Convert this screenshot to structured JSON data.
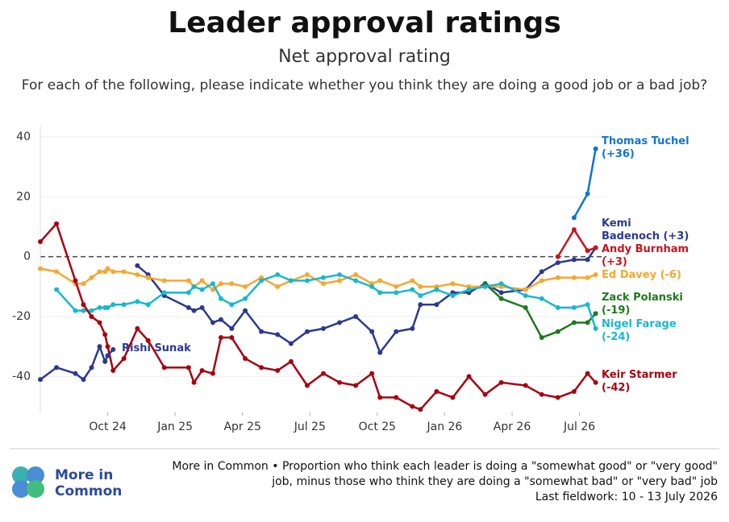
{
  "chart_data": {
    "type": "line",
    "title": "Leader approval ratings",
    "subtitle": "Net approval rating",
    "question": "For each of the following, please indicate whether you think they are doing a good job or a bad job?",
    "xlim": [
      2024.5,
      2026.6
    ],
    "xticks": [
      {
        "value": 2024.75,
        "label": "Oct 24"
      },
      {
        "value": 2025.0,
        "label": "Jan 25"
      },
      {
        "value": 2025.25,
        "label": "Apr 25"
      },
      {
        "value": 2025.5,
        "label": "Jul 25"
      },
      {
        "value": 2025.75,
        "label": "Oct 25"
      },
      {
        "value": 2026.0,
        "label": "Jan 26"
      },
      {
        "value": 2026.25,
        "label": "Apr 26"
      },
      {
        "value": 2026.5,
        "label": "Jul 26"
      }
    ],
    "ylim": [
      -52,
      44
    ],
    "yticks": [
      -40,
      -20,
      0,
      20,
      40
    ],
    "grid": true,
    "x": [
      2024.5,
      2024.56,
      2024.63,
      2024.66,
      2024.69,
      2024.72,
      2024.74,
      2024.75,
      2024.77,
      2024.81,
      2024.86,
      2024.9,
      2024.96,
      2025.05,
      2025.07,
      2025.1,
      2025.14,
      2025.17,
      2025.21,
      2025.26,
      2025.32,
      2025.38,
      2025.43,
      2025.49,
      2025.55,
      2025.61,
      2025.67,
      2025.73,
      2025.76,
      2025.82,
      2025.88,
      2025.91,
      2025.97,
      2026.03,
      2026.09,
      2026.15,
      2026.21,
      2026.3,
      2026.36,
      2026.42,
      2026.48,
      2026.53,
      2026.56
    ],
    "series": [
      {
        "name": "Thomas Tuchel (+36)",
        "color": "#1174d2",
        "values": [
          null,
          null,
          null,
          null,
          null,
          null,
          null,
          null,
          null,
          null,
          null,
          null,
          null,
          null,
          null,
          null,
          null,
          null,
          null,
          null,
          null,
          null,
          null,
          null,
          null,
          null,
          null,
          null,
          null,
          null,
          null,
          null,
          null,
          null,
          null,
          null,
          null,
          null,
          null,
          null,
          13,
          21,
          36
        ]
      },
      {
        "name": "Kemi Badenoch (+3)",
        "color": "#2b3990",
        "values": [
          null,
          null,
          null,
          null,
          null,
          null,
          null,
          null,
          null,
          null,
          -3,
          -6,
          -13,
          -17,
          -18,
          -17,
          -22,
          -21,
          -24,
          -18,
          -25,
          -26,
          -29,
          -25,
          -24,
          -22,
          -20,
          -25,
          -32,
          -25,
          -24,
          -16,
          -16,
          -12,
          -12,
          -9,
          -12,
          -11,
          -5,
          -2,
          -1,
          -1,
          3
        ]
      },
      {
        "name": "Andy Burnham (+3)",
        "color": "#c8141e",
        "values": [
          null,
          null,
          null,
          null,
          null,
          null,
          null,
          null,
          null,
          null,
          null,
          null,
          null,
          null,
          null,
          null,
          null,
          null,
          null,
          null,
          null,
          null,
          null,
          null,
          null,
          null,
          null,
          null,
          null,
          null,
          null,
          null,
          null,
          null,
          null,
          null,
          null,
          null,
          null,
          0,
          9,
          2,
          3
        ]
      },
      {
        "name": "Ed Davey (-6)",
        "color": "#f7a731",
        "values": [
          -4,
          -5,
          -9,
          -9,
          -7,
          -5,
          -5,
          -4,
          -5,
          -5,
          -6,
          -7,
          -8,
          -8,
          -10,
          -8,
          -11,
          -9,
          -9,
          -10,
          -7,
          -10,
          -8,
          -6,
          -9,
          -8,
          -6,
          -9,
          -8,
          -10,
          -8,
          -10,
          -10,
          -9,
          -10,
          -10,
          -10,
          -11,
          -8,
          -7,
          -7,
          -7,
          -6
        ]
      },
      {
        "name": "Zack Polanski (-19)",
        "color": "#1d7a1d",
        "values": [
          null,
          null,
          null,
          null,
          null,
          null,
          null,
          null,
          null,
          null,
          null,
          null,
          null,
          null,
          null,
          null,
          null,
          null,
          null,
          null,
          null,
          null,
          null,
          null,
          null,
          null,
          null,
          null,
          null,
          null,
          null,
          null,
          null,
          null,
          null,
          -9,
          -14,
          -17,
          -27,
          -25,
          -22,
          -22,
          -19
        ]
      },
      {
        "name": "Nigel Farage (-24)",
        "color": "#19b7d0",
        "values": [
          null,
          -11,
          -18,
          -18,
          -18,
          -17,
          -17,
          -17,
          -16,
          -16,
          -15,
          -16,
          -12,
          -12,
          -10,
          -11,
          -9,
          -14,
          -16,
          -14,
          -8,
          -6,
          -8,
          -8,
          -7,
          -6,
          -8,
          -10,
          -12,
          -12,
          -11,
          -13,
          -11,
          -13,
          -11,
          -10,
          -9,
          -13,
          -14,
          -17,
          -17,
          -16,
          -24
        ]
      },
      {
        "name": "Keir Starmer (-42)",
        "color": "#a8000f",
        "values": [
          5,
          11,
          -8,
          -16,
          -20,
          -22,
          -26,
          -30,
          -38,
          -34,
          -24,
          -28,
          -37,
          -37,
          -42,
          -38,
          -39,
          -27,
          -27,
          -34,
          -37,
          -38,
          -35,
          -43,
          -39,
          -42,
          -43,
          -39,
          -47,
          -47,
          -50,
          -51,
          -45,
          -47,
          -40,
          -46,
          -42,
          -43,
          -46,
          -47,
          -45,
          -39,
          -42
        ]
      },
      {
        "name": "Rishi Sunak",
        "color": "#2b3990",
        "values": [
          -41,
          -37,
          -39,
          -41,
          -37,
          -30,
          -35,
          -33,
          -31,
          null,
          null,
          null,
          null,
          null,
          null,
          null,
          null,
          null,
          null,
          null,
          null,
          null,
          null,
          null,
          null,
          null,
          null,
          null,
          null,
          null,
          null,
          null,
          null,
          null,
          null,
          null,
          null,
          null,
          null,
          null,
          null,
          null,
          null
        ]
      }
    ],
    "footnote": "More in Common • Proportion who think each leader is doing a \"somewhat good\" or \"very good\" job, minus those who think they are doing a \"somewhat bad\" or \"very bad\" job",
    "fieldwork": "Last fieldwork: 10 - 13 July 2026",
    "logo": "More in Common"
  }
}
